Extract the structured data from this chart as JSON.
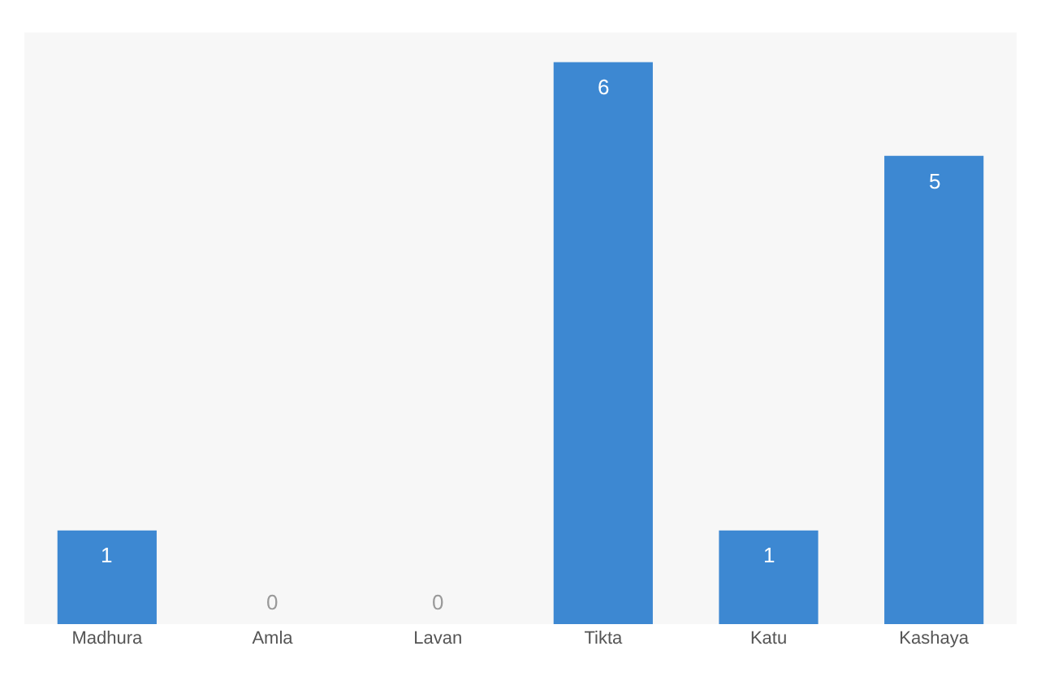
{
  "chart_data": {
    "type": "bar",
    "categories": [
      "Madhura",
      "Amla",
      "Lavan",
      "Tikta",
      "Katu",
      "Kashaya"
    ],
    "values": [
      1,
      0,
      0,
      6,
      1,
      5
    ],
    "color": "#3d88d2",
    "data_labels": true,
    "grid": false
  }
}
